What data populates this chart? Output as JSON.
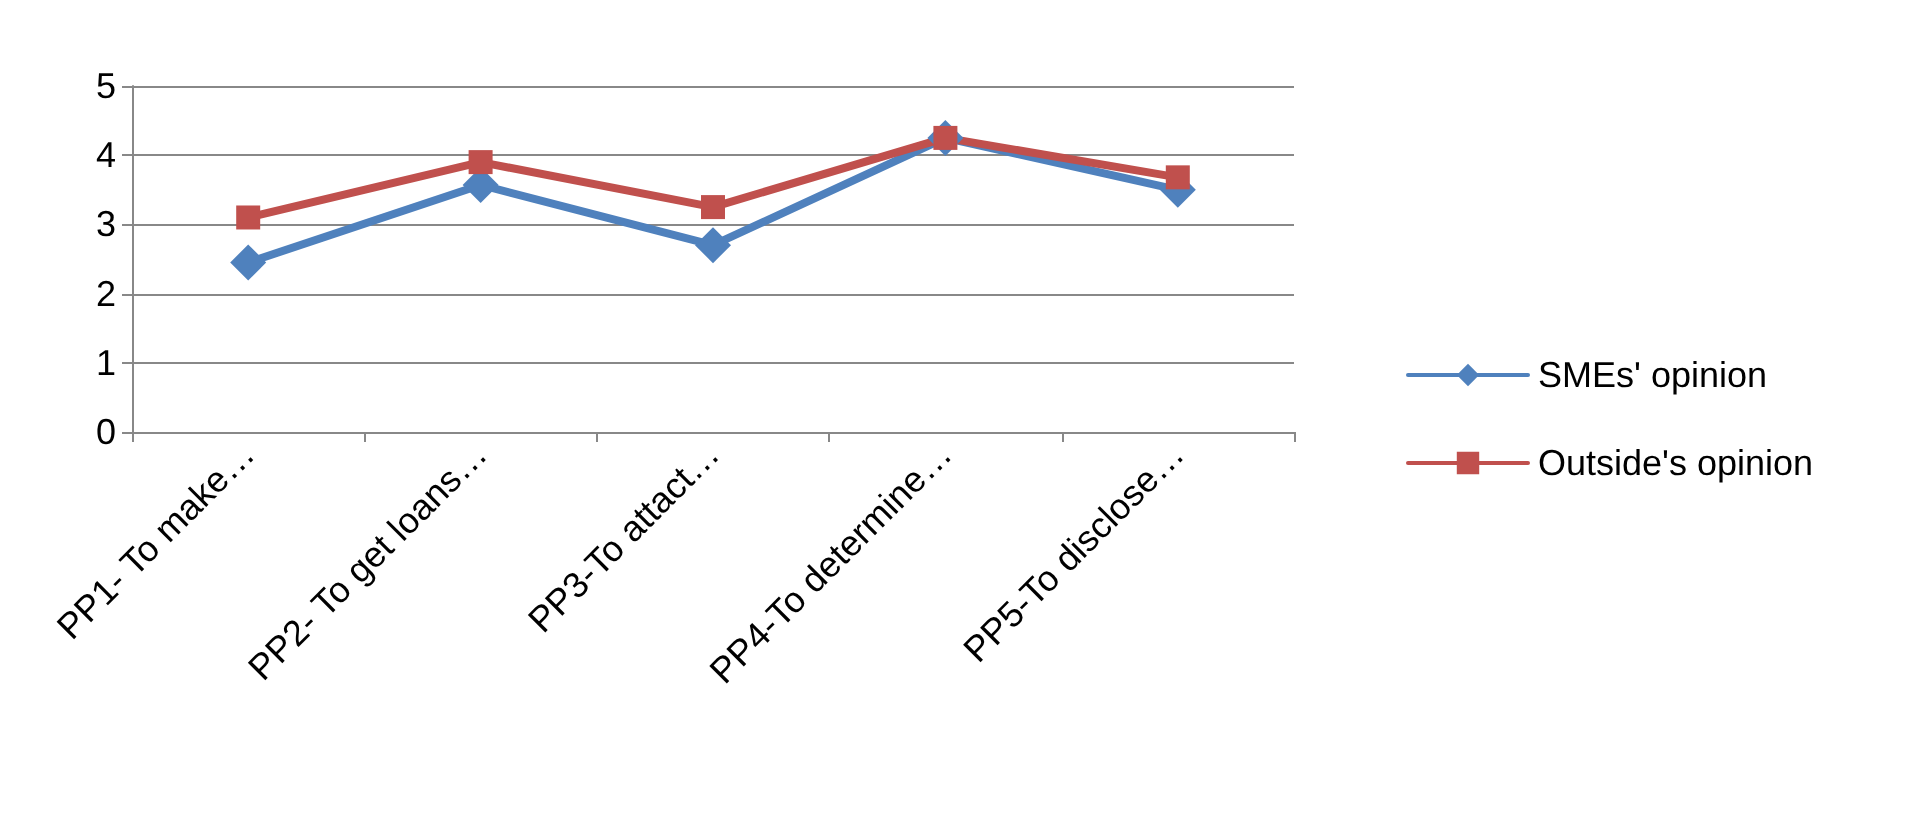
{
  "chart_data": {
    "type": "line",
    "categories": [
      "PP1- To make…",
      "PP2- To get loans…",
      "PP3-To attact…",
      "PP4-To determine…",
      "PP5-To disclose…"
    ],
    "series": [
      {
        "name": "SMEs' opinion",
        "color": "#4f81bd",
        "marker": "diamond",
        "values": [
          2.45,
          3.57,
          2.7,
          4.25,
          3.5
        ]
      },
      {
        "name": "Outside's opinion",
        "color": "#c0504d",
        "marker": "square",
        "values": [
          3.1,
          3.9,
          3.25,
          4.25,
          3.68
        ]
      }
    ],
    "ylim": [
      0,
      5
    ],
    "yticks": [
      0,
      1,
      2,
      3,
      4,
      5
    ],
    "grid": "y",
    "legend": "right",
    "line_style": "solid"
  }
}
